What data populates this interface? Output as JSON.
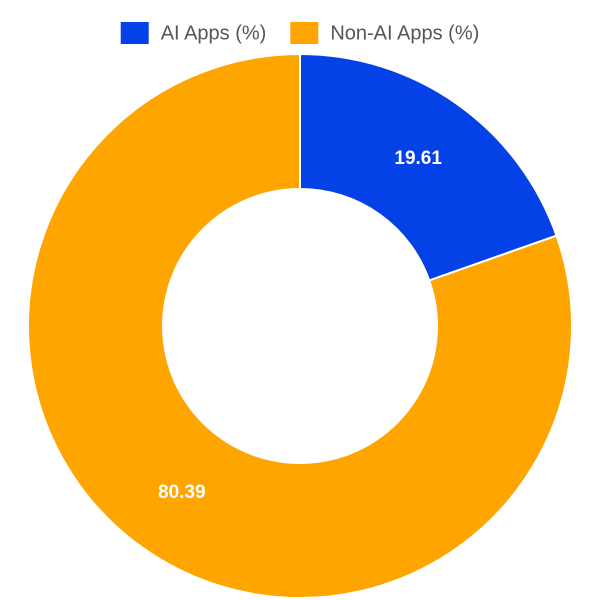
{
  "chart_data": {
    "type": "donut",
    "categories": [
      "AI Apps (%)",
      "Non-AI Apps (%)"
    ],
    "values": [
      19.61,
      80.39
    ],
    "colors": [
      "#0441e6",
      "#ffa500"
    ],
    "legend": "top"
  }
}
